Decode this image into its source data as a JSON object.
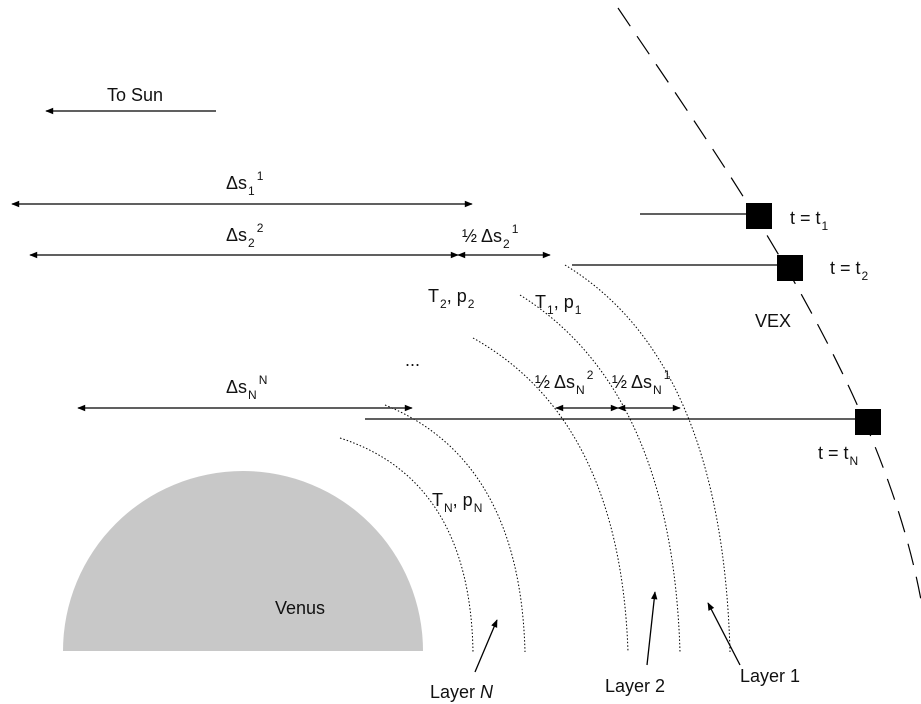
{
  "sun_label": "To Sun",
  "path_segments": [
    {
      "text": "Δs",
      "sub": "1",
      "sup": "1"
    },
    {
      "text": "Δs",
      "sub": "2",
      "sup": "2"
    },
    {
      "text": "Δs",
      "sub": "N",
      "sup": "N"
    }
  ],
  "half_segments": [
    {
      "text": "½ Δs",
      "sub": "2",
      "sup": "1"
    },
    {
      "text": "½ Δs",
      "sub": "N",
      "sup": "2"
    },
    {
      "text": "½ Δs",
      "sub": "N",
      "sup": "1"
    }
  ],
  "layer_states": [
    {
      "text": "T",
      "sub": "2",
      "text2": ", p",
      "sub2": "2"
    },
    {
      "text": "T",
      "sub": "1",
      "text2": ", p",
      "sub2": "1"
    },
    {
      "text": "T",
      "sub": "N",
      "text2": ", p",
      "sub2": "N"
    }
  ],
  "ellipsis": "...",
  "times": [
    {
      "text": "t = t",
      "sub": "1"
    },
    {
      "text": "t = t",
      "sub": "2"
    },
    {
      "text": "t = t",
      "sub": "N"
    }
  ],
  "spacecraft": "VEX",
  "planet": "Venus",
  "layers": [
    {
      "text": "Layer",
      "index": "N"
    },
    {
      "text": "Layer",
      "index": "2"
    },
    {
      "text": "Layer",
      "index": "1"
    }
  ]
}
